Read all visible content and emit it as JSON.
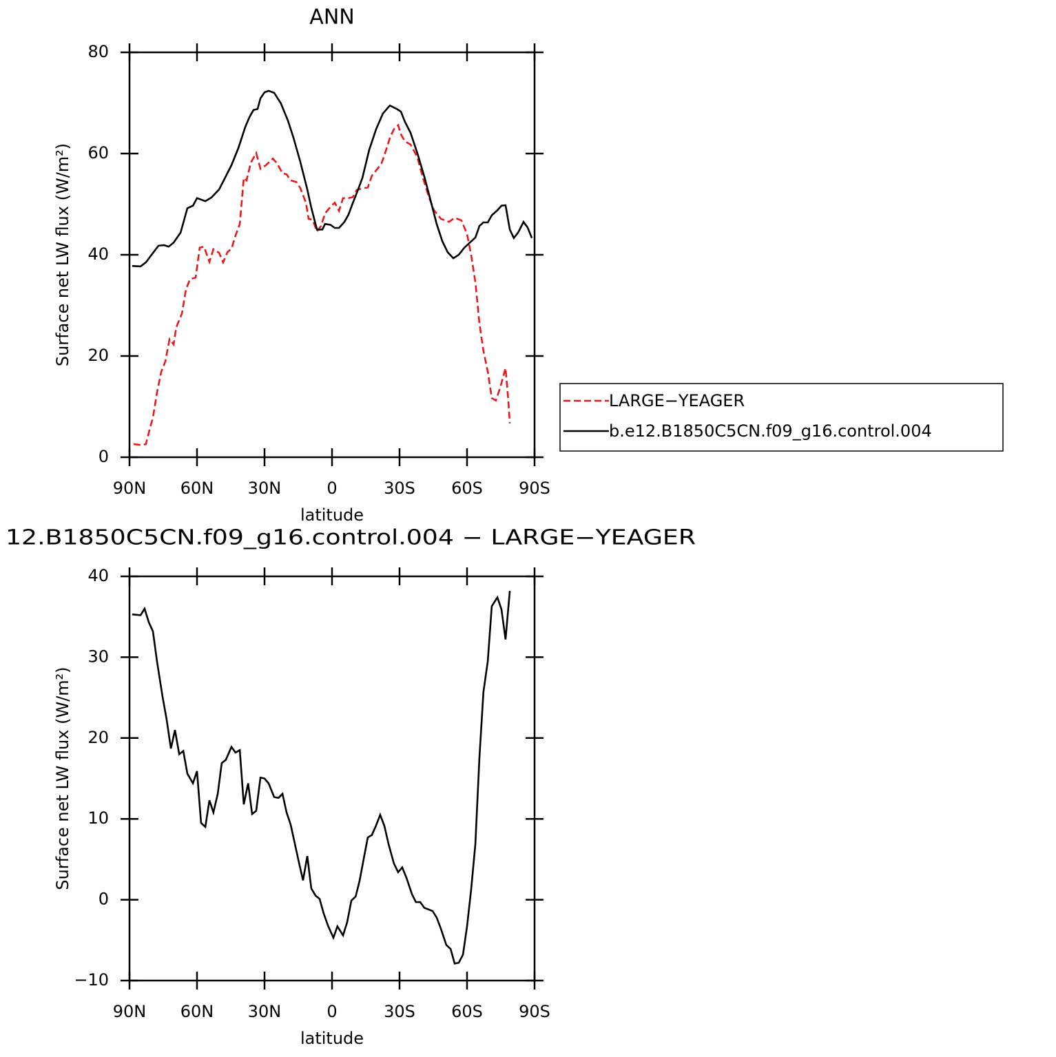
{
  "chart_data": [
    {
      "type": "line",
      "title": "ANN",
      "xlabel": "latitude",
      "ylabel": "Surface net LW flux (W/m²)",
      "xlim": [
        90,
        -90
      ],
      "xticks": [
        {
          "value": 90,
          "label": "90N"
        },
        {
          "value": 60,
          "label": "60N"
        },
        {
          "value": 30,
          "label": "30N"
        },
        0,
        {
          "value": -30,
          "label": "30S"
        },
        {
          "value": -60,
          "label": "60S"
        },
        {
          "value": -90,
          "label": "90S"
        }
      ],
      "ylim": [
        0,
        80
      ],
      "yticks": [
        0,
        20,
        40,
        60,
        80
      ],
      "legend": "right",
      "series": [
        {
          "name": "LARGE−YEAGER",
          "color": "#e8191c",
          "line_style": "dashed",
          "x": [
            88.2,
            84.5,
            82.7,
            80.8,
            79.6,
            77.8,
            75.9,
            74.1,
            72.2,
            70.4,
            69.2,
            66.7,
            64.9,
            63.1,
            60.6,
            58.8,
            56.9,
            54.5,
            52.7,
            50.2,
            48.4,
            46.5,
            44.7,
            42.9,
            41.0,
            39.2,
            38.0,
            36.1,
            33.7,
            31.8,
            29.4,
            26.3,
            24.5,
            22.0,
            20.2,
            18.4,
            15.9,
            14.1,
            11.6,
            10.4,
            8.6,
            6.7,
            4.9,
            3.1,
            0.6,
            -1.2,
            -3.1,
            -4.9,
            -7.3,
            -9.2,
            -11.0,
            -13.5,
            -15.9,
            -17.7,
            -20.2,
            -22.0,
            -23.3,
            -25.7,
            -27.5,
            -29.4,
            -30.6,
            -32.4,
            -34.9,
            -37.9,
            -40.4,
            -42.9,
            -45.3,
            -48.4,
            -52.0,
            -54.5,
            -57.5,
            -60.0,
            -61.8,
            -63.7,
            -65.5,
            -67.3,
            -69.2,
            -71.0,
            -72.8,
            -74.7,
            -77.1,
            -78.3,
            -79.0
          ],
          "values": [
            2.6,
            2.4,
            2.6,
            6.0,
            7.8,
            12.8,
            16.9,
            18.9,
            23.3,
            22.3,
            25.7,
            28.4,
            33.2,
            35.2,
            35.5,
            41.4,
            41.6,
            38.6,
            41.1,
            40.4,
            38.5,
            40.5,
            41.2,
            43.8,
            46.1,
            55.2,
            54.7,
            58.2,
            60.1,
            57.0,
            57.7,
            59.0,
            58.1,
            56.1,
            55.9,
            54.7,
            54.4,
            53.2,
            50.3,
            47.1,
            46.9,
            44.6,
            45.7,
            48.2,
            49.5,
            50.3,
            48.7,
            51.2,
            51.2,
            51.4,
            52.8,
            53.1,
            53.3,
            55.6,
            57.0,
            58.1,
            59.7,
            63.1,
            64.8,
            65.6,
            63.8,
            62.4,
            61.8,
            59.3,
            55.2,
            51.6,
            48.8,
            47.1,
            46.5,
            47.3,
            46.8,
            44.1,
            40.0,
            34.6,
            26.4,
            21.0,
            16.9,
            11.7,
            11.2,
            13.7,
            17.6,
            11.4,
            6.7
          ]
        },
        {
          "name": "b.e12.B1850C5CN.f09_g16.control.004",
          "color": "#000000",
          "line_style": "solid",
          "x": [
            88.8,
            85.1,
            82.7,
            80.2,
            77.1,
            74.7,
            72.6,
            70.4,
            67.3,
            64.3,
            61.8,
            60.0,
            56.3,
            53.6,
            50.2,
            47.8,
            44.7,
            41.6,
            38.6,
            36.7,
            34.9,
            33.1,
            31.8,
            30.0,
            28.2,
            25.7,
            22.7,
            19.6,
            17.1,
            14.1,
            11.0,
            9.2,
            6.7,
            4.3,
            3.1,
            0.6,
            -1.2,
            -3.1,
            -5.5,
            -7.3,
            -9.2,
            -11.6,
            -13.5,
            -16.5,
            -19.6,
            -22.6,
            -25.7,
            -28.8,
            -30.6,
            -32.4,
            -34.9,
            -37.9,
            -41.0,
            -44.1,
            -46.5,
            -49.0,
            -51.4,
            -53.9,
            -56.3,
            -58.8,
            -61.2,
            -63.7,
            -65.5,
            -67.3,
            -69.2,
            -71.0,
            -73.5,
            -75.3,
            -77.1,
            -79.0,
            -80.8,
            -82.7,
            -85.1,
            -86.9,
            -88.8
          ],
          "values": [
            37.8,
            37.7,
            38.5,
            40.0,
            41.8,
            41.9,
            41.6,
            42.4,
            44.4,
            49.2,
            49.7,
            51.2,
            50.6,
            51.3,
            52.9,
            55.0,
            57.7,
            61.1,
            65.2,
            67.2,
            68.6,
            68.8,
            70.9,
            72.1,
            72.4,
            72.0,
            69.9,
            66.5,
            63.1,
            58.4,
            52.9,
            49.3,
            45.0,
            45.0,
            46.1,
            45.9,
            45.3,
            45.3,
            46.5,
            47.9,
            50.2,
            52.9,
            55.2,
            60.7,
            64.8,
            67.9,
            69.5,
            68.8,
            68.3,
            66.3,
            64.1,
            60.1,
            55.5,
            50.2,
            46.1,
            42.7,
            40.5,
            39.3,
            40.0,
            41.4,
            42.4,
            43.4,
            45.7,
            46.4,
            46.4,
            47.8,
            48.8,
            49.7,
            49.8,
            45.0,
            43.3,
            44.4,
            46.5,
            45.4,
            43.3
          ]
        }
      ]
    },
    {
      "type": "line",
      "title": "12.B1850C5CN.f09_g16.control.004 − LARGE−YEAGER",
      "xlabel": "latitude",
      "ylabel": "Surface net LW flux (W/m²)",
      "xlim": [
        90,
        -90
      ],
      "xticks": [
        {
          "value": 90,
          "label": "90N"
        },
        {
          "value": 60,
          "label": "60N"
        },
        {
          "value": 30,
          "label": "30N"
        },
        0,
        {
          "value": -30,
          "label": "30S"
        },
        {
          "value": -60,
          "label": "60S"
        },
        {
          "value": -90,
          "label": "90S"
        }
      ],
      "ylim": [
        -10,
        40
      ],
      "yticks": [
        {
          "value": -10,
          "label": "−10"
        },
        0,
        10,
        20,
        30,
        40
      ],
      "color": "#000000",
      "x": [
        88.8,
        85.1,
        83.3,
        81.4,
        79.6,
        77.8,
        75.3,
        73.5,
        71.6,
        69.8,
        67.9,
        66.1,
        64.3,
        61.8,
        60.0,
        58.2,
        56.3,
        54.5,
        52.7,
        50.8,
        49.0,
        47.2,
        44.7,
        42.9,
        41.0,
        39.2,
        37.3,
        35.5,
        33.7,
        31.8,
        30.0,
        28.2,
        25.7,
        23.8,
        22.0,
        20.2,
        18.4,
        16.5,
        14.7,
        12.9,
        11.0,
        9.2,
        7.3,
        5.5,
        3.7,
        1.8,
        -0.6,
        -2.4,
        -4.9,
        -6.7,
        -8.6,
        -10.5,
        -12.2,
        -14.1,
        -15.9,
        -17.7,
        -19.6,
        -21.4,
        -23.3,
        -25.1,
        -27.5,
        -29.4,
        -31.2,
        -33.1,
        -35.5,
        -37.3,
        -39.2,
        -41.0,
        -42.9,
        -44.7,
        -46.5,
        -48.4,
        -50.8,
        -52.7,
        -54.5,
        -56.3,
        -58.2,
        -60.0,
        -61.8,
        -63.7,
        -65.5,
        -67.3,
        -69.2,
        -71.0,
        -73.5,
        -75.3,
        -77.1,
        -79.0
      ],
      "values": [
        35.3,
        35.2,
        36.0,
        34.3,
        33.2,
        29.5,
        25.1,
        22.3,
        18.7,
        21.0,
        18.0,
        18.4,
        15.6,
        14.4,
        15.9,
        9.5,
        9.0,
        12.3,
        10.8,
        13.1,
        16.9,
        17.3,
        18.9,
        18.2,
        18.5,
        11.8,
        14.4,
        10.6,
        11.0,
        15.1,
        15.0,
        14.4,
        12.7,
        12.6,
        13.1,
        10.8,
        9.3,
        6.9,
        4.6,
        2.4,
        5.4,
        1.4,
        0.5,
        0.1,
        -1.7,
        -3.2,
        -4.7,
        -3.3,
        -4.4,
        -2.8,
        -0.1,
        0.4,
        2.3,
        5.1,
        7.7,
        8.0,
        9.2,
        10.5,
        9.1,
        6.9,
        4.5,
        3.4,
        4.0,
        2.7,
        0.7,
        -0.3,
        -0.3,
        -1.0,
        -1.2,
        -1.4,
        -2.2,
        -3.6,
        -5.6,
        -6.1,
        -7.9,
        -7.8,
        -6.8,
        -3.3,
        1.2,
        6.9,
        17.6,
        25.7,
        29.5,
        36.3,
        37.4,
        35.9,
        32.2,
        38.2
      ]
    }
  ]
}
